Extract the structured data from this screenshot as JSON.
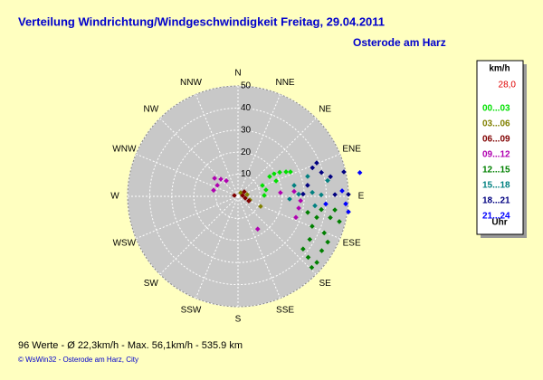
{
  "chart_data": {
    "type": "polar_scatter",
    "title": "Verteilung Windrichtung/Windgeschwindigkeit  Freitag, 29.04.2011",
    "subtitle": "Osterode am Harz",
    "directions": [
      "N",
      "NNE",
      "NE",
      "ENE",
      "E",
      "ESE",
      "SE",
      "SSE",
      "S",
      "SSW",
      "SW",
      "WSW",
      "W",
      "WNW",
      "NW",
      "NNW"
    ],
    "rlim": [
      0,
      50
    ],
    "rticks": [
      10,
      20,
      30,
      40,
      50
    ],
    "grid": true,
    "legend_title": "km/h",
    "legend_value": "28,0",
    "legend_footer": "Uhr",
    "footer": "96 Werte   -   Ø 22,3km/h   -   Max. 56,1km/h   -   535.9 km",
    "copyright": "© WsWin32  -  Osterode am Harz, City",
    "series": [
      {
        "name": "00...03",
        "color": "#00e000",
        "theta": [
          66,
          58,
          60,
          63,
          65,
          58,
          77,
          88,
          68
        ],
        "values": [
          12.1,
          19.3,
          21.8,
          24.4,
          26.2,
          16.9,
          13,
          11.9,
          18.6
        ]
      },
      {
        "name": "03...06",
        "color": "#808000",
        "theta": [
          79,
          107,
          114,
          37
        ],
        "values": [
          4.2,
          5.6,
          11.2,
          2
        ]
      },
      {
        "name": "06...09",
        "color": "#800000",
        "theta": [
          79,
          104,
          113,
          284,
          54
        ],
        "values": [
          2.1,
          3.4,
          5.3,
          1.7,
          3.5
        ]
      },
      {
        "name": "09...12",
        "color": "#b000b0",
        "theta": [
          307.6,
          298,
          315,
          284,
          323,
          101,
          94,
          110,
          85,
          149,
          85
        ],
        "values": [
          13.4,
          10.6,
          11,
          11.4,
          8.8,
          28,
          28.4,
          27.9,
          25.5,
          17.3,
          19.3
        ]
      },
      {
        "name": "12...15",
        "color": "#008000",
        "theta": [
          103,
          112,
          105,
          99,
          113,
          131,
          134,
          130,
          123,
          117,
          103,
          98,
          129,
          121,
          104
        ],
        "values": [
          32.4,
          36.2,
          36.9,
          38.2,
          42.4,
          42.1,
          46.4,
          46.6,
          45.2,
          45.6,
          42.9,
          44.3,
          37.9,
          37.9,
          47.3
        ]
      },
      {
        "name": "15...18",
        "color": "#008080",
        "theta": [
          79,
          88,
          87,
          74,
          89,
          97,
          80,
          93
        ],
        "values": [
          25.9,
          27.5,
          33.7,
          32.8,
          37.7,
          35.1,
          41.2,
          23.4
        ]
      },
      {
        "name": "18...21",
        "color": "#000080",
        "theta": [
          69,
          67,
          81,
          88,
          78,
          77,
          89,
          89,
          74
        ],
        "values": [
          36.1,
          38.7,
          31.9,
          29.5,
          42.8,
          49.2,
          50,
          43.9,
          39.3
        ]
      },
      {
        "name": "21...24",
        "color": "#0000ff",
        "theta": [
          79,
          94,
          98,
          87,
          95
        ],
        "values": [
          56.2,
          48.9,
          50.5,
          47.2,
          39.9
        ]
      }
    ]
  }
}
